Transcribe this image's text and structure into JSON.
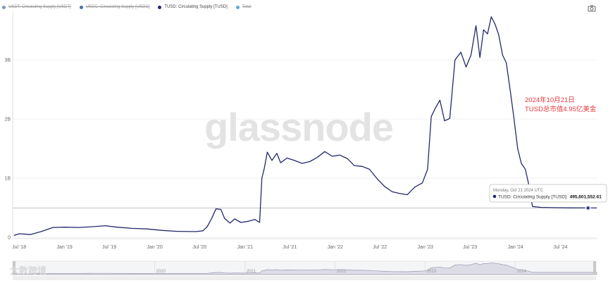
{
  "legend": [
    {
      "label": "USDT: Circulating Supply [USDT]",
      "color": "#7a96c8",
      "state": "hidden"
    },
    {
      "label": "USDC: Circulating Supply [USDC]",
      "color": "#4a6fa5",
      "state": "hidden"
    },
    {
      "label": "TUSD: Circulating Supply [TUSD]",
      "color": "#23296b",
      "state": "active"
    },
    {
      "label": "Total",
      "color": "#5aa9d6",
      "state": "hidden"
    }
  ],
  "toolbar": {
    "camera_icon": "camera-icon"
  },
  "watermark": "glassnode",
  "brand_watermark": "大数跨境",
  "annotation": [
    "2024年10月21日",
    "TUSD总市值4.95亿美金"
  ],
  "tooltip": {
    "date": "Monday, Oct 21 2024 UTC",
    "series": "TUSD: Circulating Supply [TUSD]:",
    "value": "495,601,552.61"
  },
  "navigator_labels": [
    "2020",
    "2021",
    "2022",
    "2023",
    "2024"
  ],
  "chart_data": {
    "type": "line",
    "title": "",
    "xlabel": "",
    "ylabel": "",
    "x_ticks": [
      "Jul '18",
      "Jan '19",
      "Jul '19",
      "Jan '20",
      "Jul '20",
      "Jan '21",
      "Jul '21",
      "Jan '22",
      "Jul '22",
      "Jan '23",
      "Jul '23",
      "Jan '24",
      "Jul '24"
    ],
    "y_ticks": [
      "0",
      "1B",
      "2B",
      "3B"
    ],
    "ylim": [
      0,
      3800000000
    ],
    "xlim": [
      "2018-06-05",
      "2024-11-28"
    ],
    "grid": "horizontal",
    "legend_position": "top-left",
    "series": [
      {
        "name": "TUSD: Circulating Supply [TUSD]",
        "color": "#23296b",
        "points": [
          [
            "2018-06-10",
            30000000
          ],
          [
            "2018-07-01",
            60000000
          ],
          [
            "2018-08-15",
            45000000
          ],
          [
            "2018-10-01",
            100000000
          ],
          [
            "2018-11-15",
            165000000
          ],
          [
            "2019-01-01",
            170000000
          ],
          [
            "2019-03-01",
            165000000
          ],
          [
            "2019-05-01",
            180000000
          ],
          [
            "2019-06-15",
            195000000
          ],
          [
            "2019-08-01",
            170000000
          ],
          [
            "2019-10-01",
            150000000
          ],
          [
            "2019-12-01",
            140000000
          ],
          [
            "2020-02-01",
            115000000
          ],
          [
            "2020-04-01",
            100000000
          ],
          [
            "2020-06-15",
            95000000
          ],
          [
            "2020-07-15",
            110000000
          ],
          [
            "2020-08-01",
            180000000
          ],
          [
            "2020-08-20",
            330000000
          ],
          [
            "2020-09-05",
            480000000
          ],
          [
            "2020-09-25",
            470000000
          ],
          [
            "2020-10-10",
            320000000
          ],
          [
            "2020-11-01",
            240000000
          ],
          [
            "2020-11-20",
            310000000
          ],
          [
            "2020-12-15",
            250000000
          ],
          [
            "2021-01-15",
            270000000
          ],
          [
            "2021-02-10",
            300000000
          ],
          [
            "2021-03-01",
            250000000
          ],
          [
            "2021-03-10",
            1000000000
          ],
          [
            "2021-03-20",
            1170000000
          ],
          [
            "2021-04-01",
            1440000000
          ],
          [
            "2021-04-20",
            1300000000
          ],
          [
            "2021-05-10",
            1420000000
          ],
          [
            "2021-05-25",
            1260000000
          ],
          [
            "2021-06-20",
            1340000000
          ],
          [
            "2021-07-20",
            1300000000
          ],
          [
            "2021-08-20",
            1250000000
          ],
          [
            "2021-09-20",
            1280000000
          ],
          [
            "2021-10-20",
            1350000000
          ],
          [
            "2021-11-20",
            1450000000
          ],
          [
            "2021-12-20",
            1370000000
          ],
          [
            "2022-01-20",
            1390000000
          ],
          [
            "2022-02-20",
            1330000000
          ],
          [
            "2022-03-20",
            1210000000
          ],
          [
            "2022-04-20",
            1200000000
          ],
          [
            "2022-05-20",
            1150000000
          ],
          [
            "2022-06-20",
            990000000
          ],
          [
            "2022-07-20",
            860000000
          ],
          [
            "2022-08-20",
            770000000
          ],
          [
            "2022-09-20",
            740000000
          ],
          [
            "2022-10-20",
            720000000
          ],
          [
            "2022-11-20",
            850000000
          ],
          [
            "2022-12-20",
            920000000
          ],
          [
            "2023-01-10",
            1150000000
          ],
          [
            "2023-01-25",
            2040000000
          ],
          [
            "2023-02-10",
            2180000000
          ],
          [
            "2023-03-01",
            2320000000
          ],
          [
            "2023-03-20",
            1970000000
          ],
          [
            "2023-04-10",
            2010000000
          ],
          [
            "2023-05-01",
            3000000000
          ],
          [
            "2023-05-25",
            3130000000
          ],
          [
            "2023-06-15",
            2880000000
          ],
          [
            "2023-07-05",
            3080000000
          ],
          [
            "2023-07-25",
            3580000000
          ],
          [
            "2023-08-10",
            3040000000
          ],
          [
            "2023-08-25",
            3510000000
          ],
          [
            "2023-09-10",
            3440000000
          ],
          [
            "2023-09-25",
            3730000000
          ],
          [
            "2023-10-10",
            3610000000
          ],
          [
            "2023-10-25",
            3430000000
          ],
          [
            "2023-11-10",
            3080000000
          ],
          [
            "2023-11-25",
            2950000000
          ],
          [
            "2023-12-10",
            2510000000
          ],
          [
            "2023-12-25",
            2040000000
          ],
          [
            "2024-01-10",
            1500000000
          ],
          [
            "2024-01-25",
            1250000000
          ],
          [
            "2024-02-10",
            1150000000
          ],
          [
            "2024-02-25",
            870000000
          ],
          [
            "2024-03-10",
            520000000
          ],
          [
            "2024-04-15",
            505000000
          ],
          [
            "2024-06-01",
            500000000
          ],
          [
            "2024-08-01",
            497000000
          ],
          [
            "2024-10-21",
            495601552.61
          ],
          [
            "2024-11-25",
            495000000
          ]
        ]
      }
    ]
  }
}
